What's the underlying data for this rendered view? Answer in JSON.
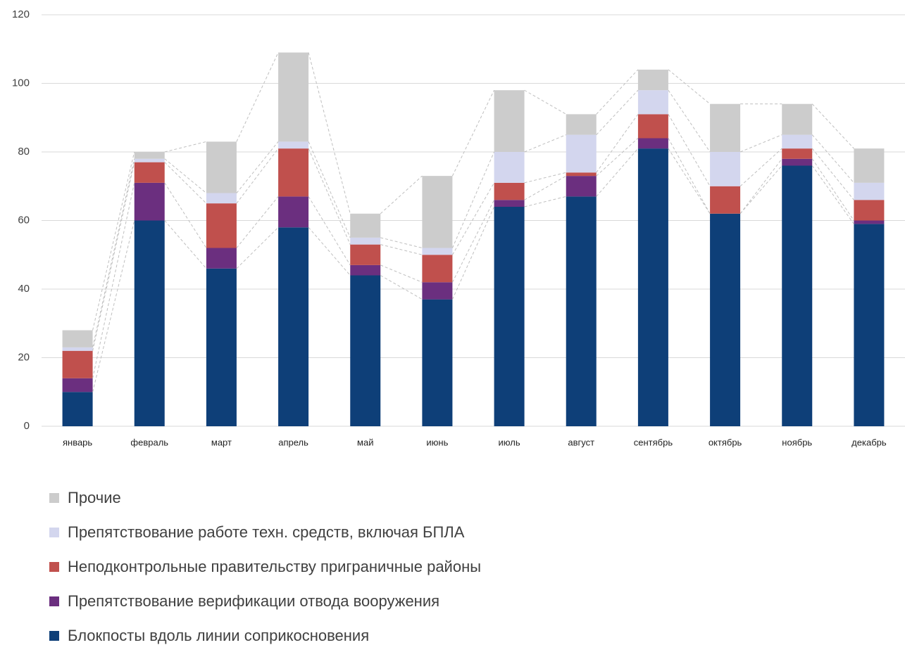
{
  "chart_data": {
    "type": "stacked_bar",
    "categories": [
      "январь",
      "февраль",
      "март",
      "апрель",
      "май",
      "июнь",
      "июль",
      "август",
      "сентябрь",
      "октябрь",
      "ноябрь",
      "декабрь"
    ],
    "series": [
      {
        "name": "Блокпосты вдоль линии соприкосновения",
        "color": "#0e3f78",
        "values": [
          10,
          60,
          46,
          58,
          44,
          37,
          64,
          67,
          81,
          62,
          76,
          59
        ]
      },
      {
        "name": "Препятствование верификации отвода вооружения",
        "color": "#6b2f7f",
        "values": [
          4,
          11,
          6,
          9,
          3,
          5,
          2,
          6,
          3,
          0,
          2,
          1
        ]
      },
      {
        "name": "Неподконтрольные правительству приграничные районы",
        "color": "#c0504d",
        "values": [
          8,
          6,
          13,
          14,
          6,
          8,
          5,
          1,
          7,
          8,
          3,
          6
        ]
      },
      {
        "name": "Препятствование работе техн. средств, включая БПЛА",
        "color": "#d3d6ee",
        "values": [
          1,
          1,
          3,
          2,
          2,
          2,
          9,
          11,
          7,
          10,
          4,
          5
        ]
      },
      {
        "name": "Прочие",
        "color": "#cccccc",
        "values": [
          5,
          2,
          15,
          26,
          7,
          21,
          18,
          6,
          6,
          14,
          9,
          10
        ]
      }
    ],
    "ylim": [
      0,
      120
    ],
    "yticks": [
      0,
      20,
      40,
      60,
      80,
      100,
      120
    ],
    "grid": true
  }
}
